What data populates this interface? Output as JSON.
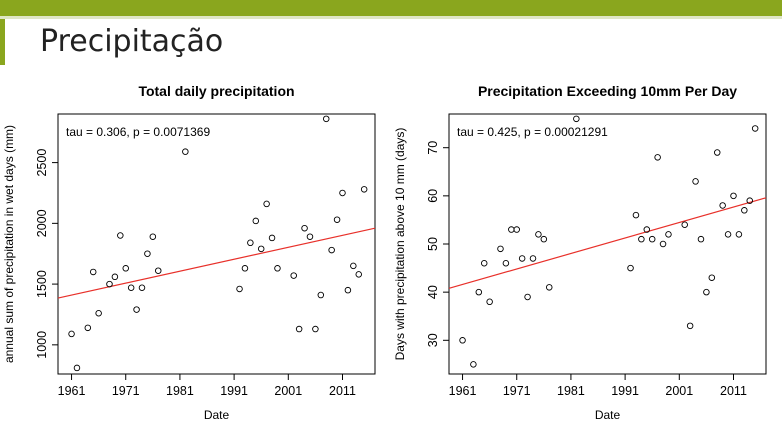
{
  "page": {
    "title": "Precipitação"
  },
  "colors": {
    "accent": "#8aa61e",
    "trend": "#e8302a",
    "points": "#000000"
  },
  "chart_data": [
    {
      "type": "scatter",
      "title": "Total daily precipitation",
      "xlabel": "Date",
      "ylabel": "annual sum of precipitation in wet days (mm)",
      "annotation": "tau = 0.306, p = 0.0071369",
      "xlim": [
        1958.5,
        2017
      ],
      "ylim": [
        760,
        2900
      ],
      "xticks": [
        1961,
        1971,
        1981,
        1991,
        2001,
        2011
      ],
      "yticks": [
        1000,
        1500,
        2000,
        2500
      ],
      "points": [
        [
          1961,
          1090
        ],
        [
          1962,
          810
        ],
        [
          1964,
          1140
        ],
        [
          1965,
          1600
        ],
        [
          1966,
          1260
        ],
        [
          1968,
          1500
        ],
        [
          1969,
          1560
        ],
        [
          1970,
          1900
        ],
        [
          1971,
          1630
        ],
        [
          1972,
          1470
        ],
        [
          1973,
          1290
        ],
        [
          1974,
          1470
        ],
        [
          1975,
          1750
        ],
        [
          1976,
          1890
        ],
        [
          1977,
          1610
        ],
        [
          1982,
          2590
        ],
        [
          1992,
          1460
        ],
        [
          1993,
          1630
        ],
        [
          1994,
          1840
        ],
        [
          1995,
          2020
        ],
        [
          1996,
          1790
        ],
        [
          1997,
          2160
        ],
        [
          1998,
          1880
        ],
        [
          1999,
          1630
        ],
        [
          2002,
          1570
        ],
        [
          2003,
          1130
        ],
        [
          2004,
          1960
        ],
        [
          2005,
          1890
        ],
        [
          2006,
          1130
        ],
        [
          2007,
          1410
        ],
        [
          2008,
          2860
        ],
        [
          2009,
          1780
        ],
        [
          2010,
          2030
        ],
        [
          2011,
          2250
        ],
        [
          2012,
          1450
        ],
        [
          2013,
          1650
        ],
        [
          2014,
          1580
        ],
        [
          2015,
          2280
        ]
      ],
      "trend": {
        "x": [
          1958.5,
          2017
        ],
        "y": [
          1385,
          1960
        ]
      }
    },
    {
      "type": "scatter",
      "title": "Precipitation Exceeding 10mm Per Day",
      "xlabel": "Date",
      "ylabel": "Days with precipitation above 10 mm (days)",
      "annotation": "tau = 0.425, p = 0.00021291",
      "xlim": [
        1958.5,
        2017
      ],
      "ylim": [
        23,
        77
      ],
      "xticks": [
        1961,
        1971,
        1981,
        1991,
        2001,
        2011
      ],
      "yticks": [
        30,
        40,
        50,
        60,
        70
      ],
      "points": [
        [
          1961,
          30
        ],
        [
          1963,
          25
        ],
        [
          1964,
          40
        ],
        [
          1965,
          46
        ],
        [
          1966,
          38
        ],
        [
          1968,
          49
        ],
        [
          1969,
          46
        ],
        [
          1970,
          53
        ],
        [
          1971,
          53
        ],
        [
          1972,
          47
        ],
        [
          1973,
          39
        ],
        [
          1974,
          47
        ],
        [
          1975,
          52
        ],
        [
          1976,
          51
        ],
        [
          1977,
          41
        ],
        [
          1982,
          76
        ],
        [
          1992,
          45
        ],
        [
          1993,
          56
        ],
        [
          1994,
          51
        ],
        [
          1995,
          53
        ],
        [
          1996,
          51
        ],
        [
          1997,
          68
        ],
        [
          1998,
          50
        ],
        [
          1999,
          52
        ],
        [
          2002,
          54
        ],
        [
          2003,
          33
        ],
        [
          2004,
          63
        ],
        [
          2005,
          51
        ],
        [
          2006,
          40
        ],
        [
          2007,
          43
        ],
        [
          2008,
          69
        ],
        [
          2009,
          58
        ],
        [
          2010,
          52
        ],
        [
          2011,
          60
        ],
        [
          2012,
          52
        ],
        [
          2013,
          57
        ],
        [
          2014,
          59
        ],
        [
          2015,
          74
        ]
      ],
      "trend": {
        "x": [
          1958.5,
          2017
        ],
        "y": [
          40.8,
          59.6
        ]
      }
    }
  ]
}
